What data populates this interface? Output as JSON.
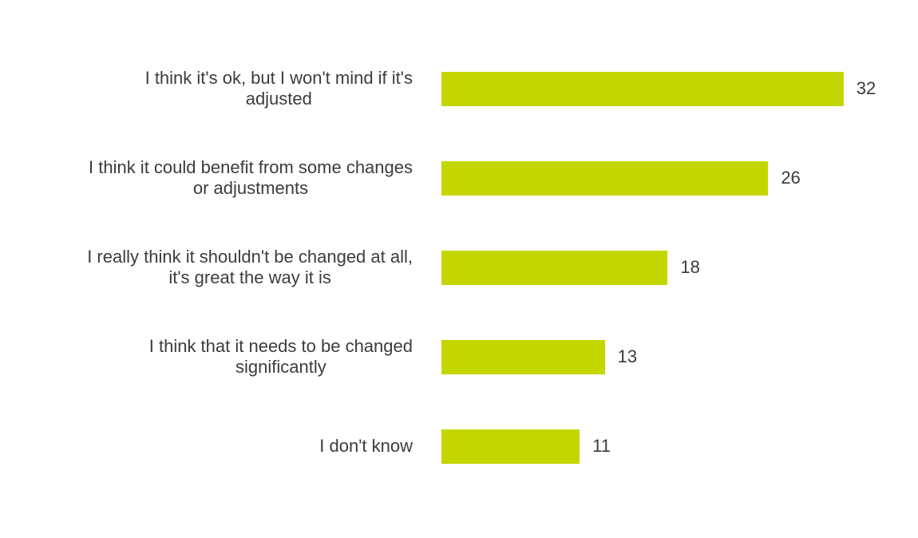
{
  "chart_data": {
    "type": "bar",
    "orientation": "horizontal",
    "title": "",
    "xlabel": "",
    "ylabel": "",
    "xlim": [
      0,
      35
    ],
    "grid": false,
    "legend": false,
    "bar_color": "#c3d600",
    "text_color": "#3c3c3c",
    "value_label_position": "outside-end",
    "categories": [
      "I think it's ok, but I won't mind if it's adjusted",
      "I think it could benefit from some changes or adjustments",
      "I really think it shouldn't be changed at all, it's great the way it is",
      "I think that it needs to be changed significantly",
      "I don't know"
    ],
    "values": [
      32,
      26,
      18,
      13,
      11
    ],
    "rows": [
      {
        "lines": [
          "I think it's ok, but I won't mind if it's",
          "adjusted"
        ],
        "value": 32,
        "value_label": "32"
      },
      {
        "lines": [
          "I think it could benefit from some changes",
          "or adjustments"
        ],
        "value": 26,
        "value_label": "26"
      },
      {
        "lines": [
          "I really think it shouldn't be changed at all,",
          "it's great the way it is"
        ],
        "value": 18,
        "value_label": "18"
      },
      {
        "lines": [
          "I think that it needs to be changed",
          "significantly"
        ],
        "value": 13,
        "value_label": "13"
      },
      {
        "lines": [
          "I don't know"
        ],
        "value": 11,
        "value_label": "11"
      }
    ]
  }
}
